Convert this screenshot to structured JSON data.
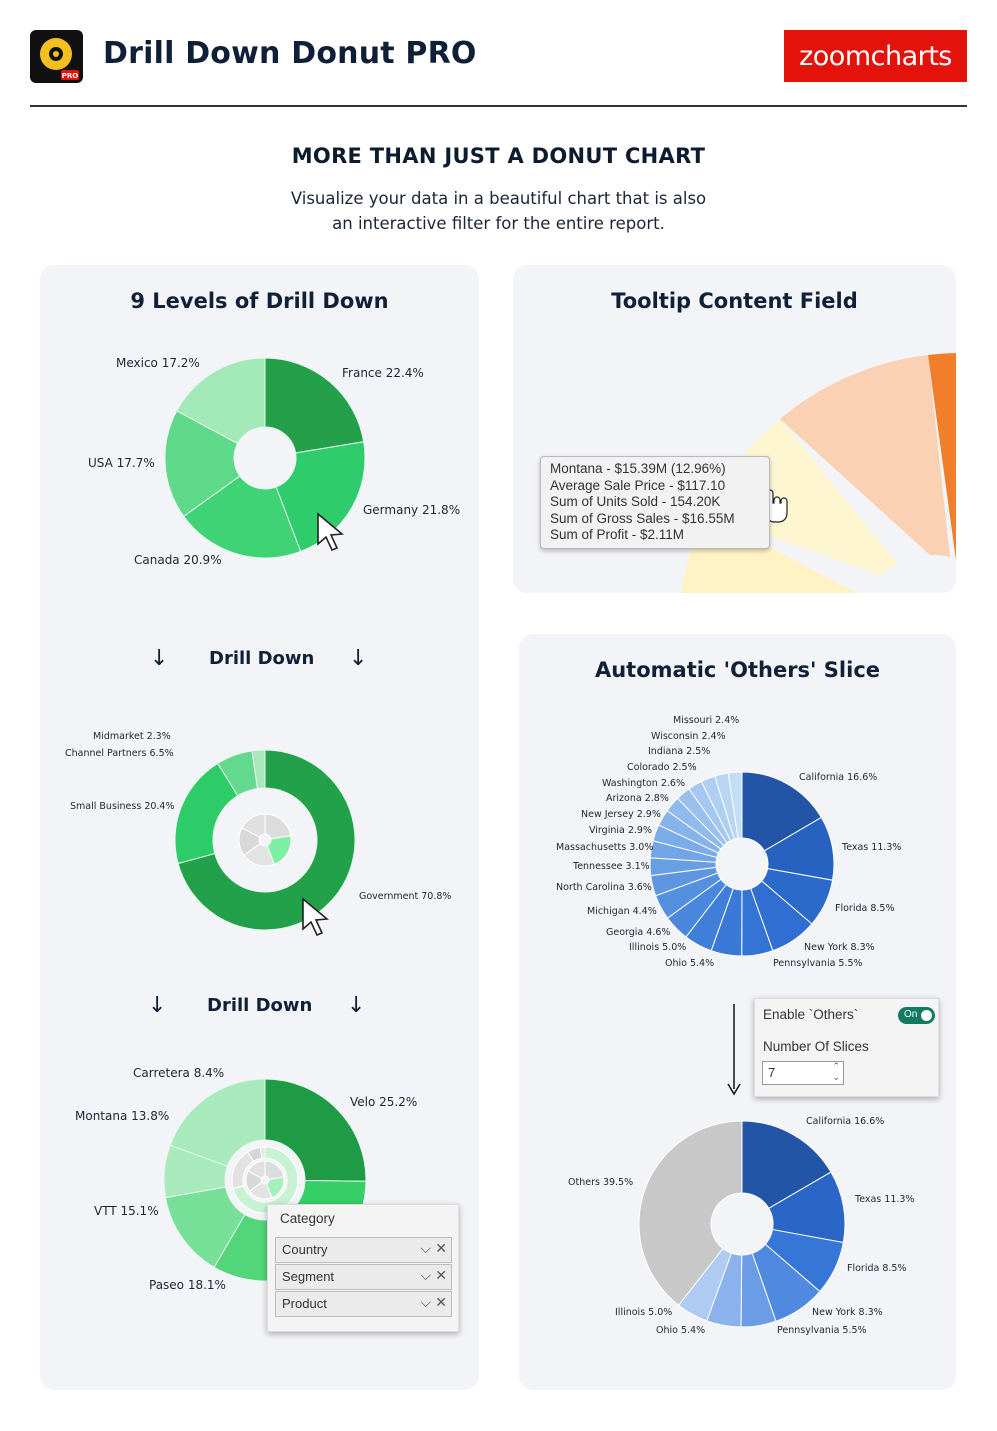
{
  "header": {
    "title": "Drill Down Donut PRO",
    "app_icon_badge": "PRO",
    "brand": "zoomcharts"
  },
  "hero": {
    "title": "MORE THAN JUST A DONUT CHART",
    "subtitle_line1": "Visualize your data in a beautiful chart that is also",
    "subtitle_line2": "an interactive filter for the entire report."
  },
  "cards": {
    "drill": {
      "title": "9 Levels of Drill Down",
      "drill_label": "Drill Down"
    },
    "tooltip": {
      "title": "Tooltip Content Field"
    },
    "others": {
      "title": "Automatic 'Others' Slice"
    }
  },
  "tooltip": {
    "lines": [
      "Montana - $15.39M (12.96%)",
      "Average Sale Price - $117.10",
      "Sum of Units Sold - 154.20K",
      "Sum of Gross Sales - $16.55M",
      "Sum of Profit - $2.11M"
    ]
  },
  "settings_panel": {
    "enable_label": "Enable `Others`",
    "toggle_label": "On",
    "slices_label": "Number Of Slices",
    "slices_value": "7"
  },
  "category_panel": {
    "title": "Category",
    "items": [
      "Country",
      "Segment",
      "Product"
    ]
  },
  "chart_data": [
    {
      "type": "pie",
      "name": "countries",
      "categories": [
        "France",
        "Germany",
        "Canada",
        "USA",
        "Mexico"
      ],
      "labels": [
        "France 22.4%",
        "Germany 21.8%",
        "Canada 20.9%",
        "USA 17.7%",
        "Mexico 17.2%"
      ],
      "values": [
        22.4,
        21.8,
        20.9,
        17.7,
        17.2
      ],
      "colors": [
        "#24a04a",
        "#2ecc6a",
        "#40d375",
        "#5ed98a",
        "#a3e8b7"
      ]
    },
    {
      "type": "pie",
      "name": "segments",
      "categories": [
        "Government",
        "Small Business",
        "Channel Partners",
        "Midmarket"
      ],
      "labels": [
        "Government 70.8%",
        "Small Business 20.4%",
        "Channel Partners 6.5%",
        "Midmarket 2.3%"
      ],
      "values": [
        70.8,
        20.4,
        6.5,
        2.3
      ],
      "colors": [
        "#22a04a",
        "#2dcc68",
        "#62d98c",
        "#a8e8bb"
      ]
    },
    {
      "type": "pie",
      "name": "products",
      "categories": [
        "Velo",
        "Paseo",
        "VTT",
        "Montana",
        "Carretera"
      ],
      "labels": [
        "Velo 25.2%",
        "Paseo 18.1%",
        "VTT 15.1%",
        "Montana 13.8%",
        "Carretera 8.4%"
      ],
      "values": [
        25.2,
        18.1,
        15.1,
        13.8,
        8.4
      ],
      "colors": [
        "#1f9a45",
        "#35cf66",
        "#52d679",
        "#78df98",
        "#a9eabd"
      ]
    },
    {
      "type": "pie",
      "name": "states",
      "labels": [
        "California 16.6%",
        "Texas 11.3%",
        "Florida 8.5%",
        "New York 8.3%",
        "Pennsylvania 5.5%",
        "Ohio 5.4%",
        "Illinois 5.0%",
        "Georgia 4.6%",
        "Michigan 4.4%",
        "North Carolina 3.6%",
        "Tennessee 3.1%",
        "Massachusetts 3.0%",
        "Virginia 2.9%",
        "New Jersey 2.9%",
        "Arizona 2.8%",
        "Washington 2.6%",
        "Colorado 2.5%",
        "Indiana 2.5%",
        "Wisconsin 2.4%",
        "Missouri 2.4%"
      ],
      "values": [
        16.6,
        11.3,
        8.5,
        8.3,
        5.5,
        5.4,
        5.0,
        4.6,
        4.4,
        3.6,
        3.1,
        3.0,
        2.9,
        2.9,
        2.8,
        2.6,
        2.5,
        2.5,
        2.4,
        2.4
      ]
    },
    {
      "type": "pie",
      "name": "states_with_others",
      "labels": [
        "California 16.6%",
        "Texas 11.3%",
        "Florida 8.5%",
        "New York 8.3%",
        "Pennsylvania 5.5%",
        "Ohio 5.4%",
        "Illinois 5.0%",
        "Others 39.5%"
      ],
      "values": [
        16.6,
        11.3,
        8.5,
        8.3,
        5.5,
        5.4,
        5.0,
        39.5
      ],
      "colors": [
        "#2355a7",
        "#2a66c7",
        "#3576d6",
        "#4f8ae0",
        "#6b9de6",
        "#8ab2ec",
        "#afcaf3",
        "#c8c8c8"
      ]
    }
  ]
}
